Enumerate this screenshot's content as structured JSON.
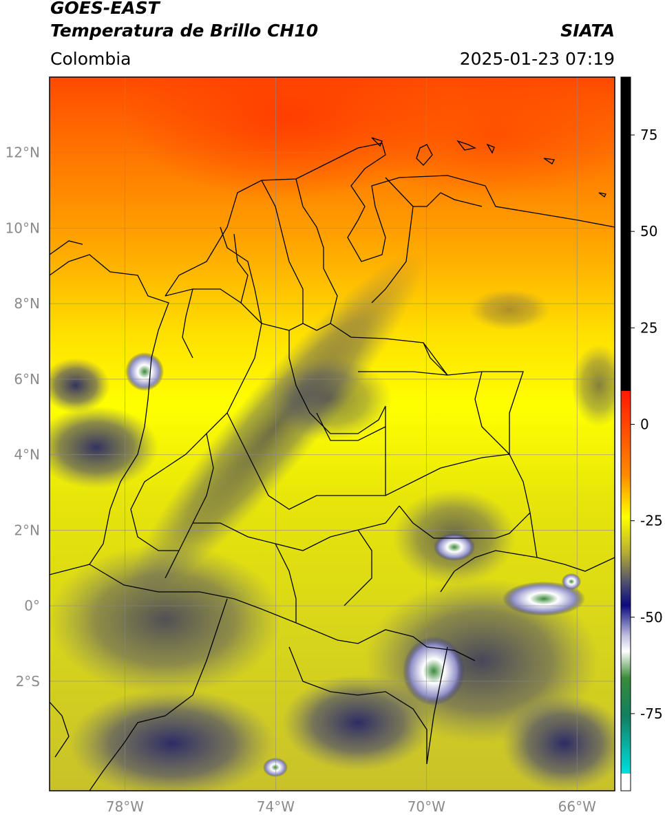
{
  "header": {
    "title_line1": "GOES-EAST",
    "title_line2": "Temperatura de Brillo CH10",
    "org": "SIATA",
    "region": "Colombia",
    "datetime": "2025-01-23 07:19"
  },
  "map": {
    "lon_ticks": [
      "78°W",
      "74°W",
      "70°W",
      "66°W"
    ],
    "lat_ticks": [
      "12°N",
      "10°N",
      "8°N",
      "6°N",
      "4°N",
      "2°N",
      "0°",
      "2°S"
    ],
    "lon_range": [
      -80,
      -65
    ],
    "lat_range": [
      -4.9,
      14
    ]
  },
  "colorbar": {
    "labels": [
      "75",
      "50",
      "25",
      "0",
      "-25",
      "-50",
      "-75"
    ],
    "range": [
      -95,
      90
    ],
    "colors": {
      "black": "#000000",
      "red": "#ff1a00",
      "orange": "#ff8a00",
      "yellow": "#ffff00",
      "olive": "#a8a030",
      "navy": "#101080",
      "white": "#ffffff",
      "green": "#2a7a2a",
      "cyan": "#00e0e0"
    }
  }
}
